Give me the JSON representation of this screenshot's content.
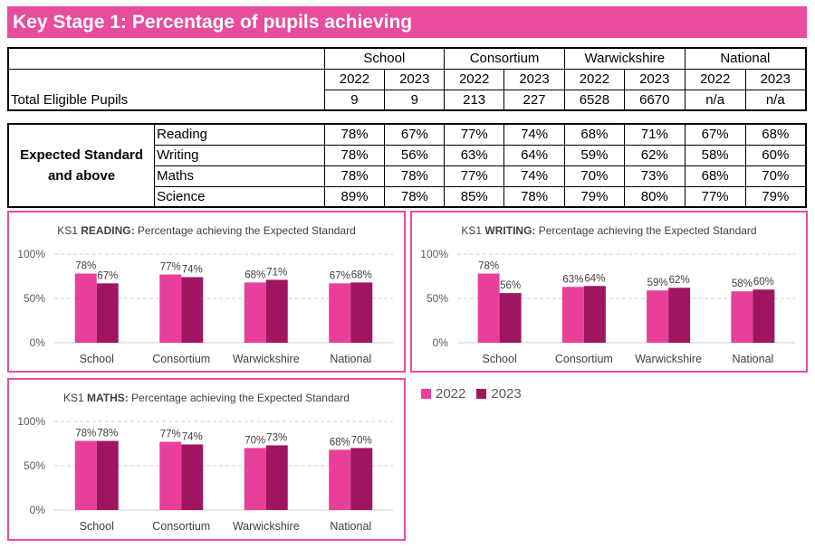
{
  "title": "Key Stage 1: Percentage of pupils achieving",
  "groups": [
    "School",
    "Consortium",
    "Warwickshire",
    "National"
  ],
  "years": [
    "2022",
    "2023"
  ],
  "eligible": {
    "label": "Total Eligible Pupils",
    "values": [
      "9",
      "9",
      "213",
      "227",
      "6528",
      "6670",
      "n/a",
      "n/a"
    ]
  },
  "expected": {
    "label": "Expected Standard and above",
    "rows": [
      {
        "subject": "Reading",
        "values": [
          "78%",
          "67%",
          "77%",
          "74%",
          "68%",
          "71%",
          "67%",
          "68%"
        ]
      },
      {
        "subject": "Writing",
        "values": [
          "78%",
          "56%",
          "63%",
          "64%",
          "59%",
          "62%",
          "58%",
          "60%"
        ]
      },
      {
        "subject": "Maths",
        "values": [
          "78%",
          "78%",
          "77%",
          "74%",
          "70%",
          "73%",
          "68%",
          "70%"
        ]
      },
      {
        "subject": "Science",
        "values": [
          "89%",
          "78%",
          "85%",
          "78%",
          "79%",
          "80%",
          "77%",
          "79%"
        ]
      }
    ]
  },
  "colors": {
    "accent": "#e84c9d",
    "y2022": "#e8409a",
    "y2023": "#a01560",
    "grid": "#d0d0d0"
  },
  "legend": [
    "2022",
    "2023"
  ],
  "chart_data": [
    {
      "type": "bar",
      "title_prefix": "KS1 ",
      "title_bold": "READING:",
      "title_rest": " Percentage achieving the Expected Standard",
      "categories": [
        "School",
        "Consortium",
        "Warwickshire",
        "National"
      ],
      "series": [
        {
          "name": "2022",
          "values": [
            78,
            77,
            68,
            67
          ]
        },
        {
          "name": "2023",
          "values": [
            67,
            74,
            71,
            68
          ]
        }
      ],
      "ylim": [
        0,
        100
      ],
      "yticks": [
        "0%",
        "50%",
        "100%"
      ],
      "grid": true
    },
    {
      "type": "bar",
      "title_prefix": "KS1 ",
      "title_bold": "WRITING:",
      "title_rest": " Percentage achieving the Expected Standard",
      "categories": [
        "School",
        "Consortium",
        "Warwickshire",
        "National"
      ],
      "series": [
        {
          "name": "2022",
          "values": [
            78,
            63,
            59,
            58
          ]
        },
        {
          "name": "2023",
          "values": [
            56,
            64,
            62,
            60
          ]
        }
      ],
      "ylim": [
        0,
        100
      ],
      "yticks": [
        "0%",
        "50%",
        "100%"
      ],
      "grid": true
    },
    {
      "type": "bar",
      "title_prefix": "KS1 ",
      "title_bold": "MATHS:",
      "title_rest": " Percentage achieving the Expected Standard",
      "categories": [
        "School",
        "Consortium",
        "Warwickshire",
        "National"
      ],
      "series": [
        {
          "name": "2022",
          "values": [
            78,
            77,
            70,
            68
          ]
        },
        {
          "name": "2023",
          "values": [
            78,
            74,
            73,
            70
          ]
        }
      ],
      "ylim": [
        0,
        100
      ],
      "yticks": [
        "0%",
        "50%",
        "100%"
      ],
      "grid": true
    }
  ]
}
